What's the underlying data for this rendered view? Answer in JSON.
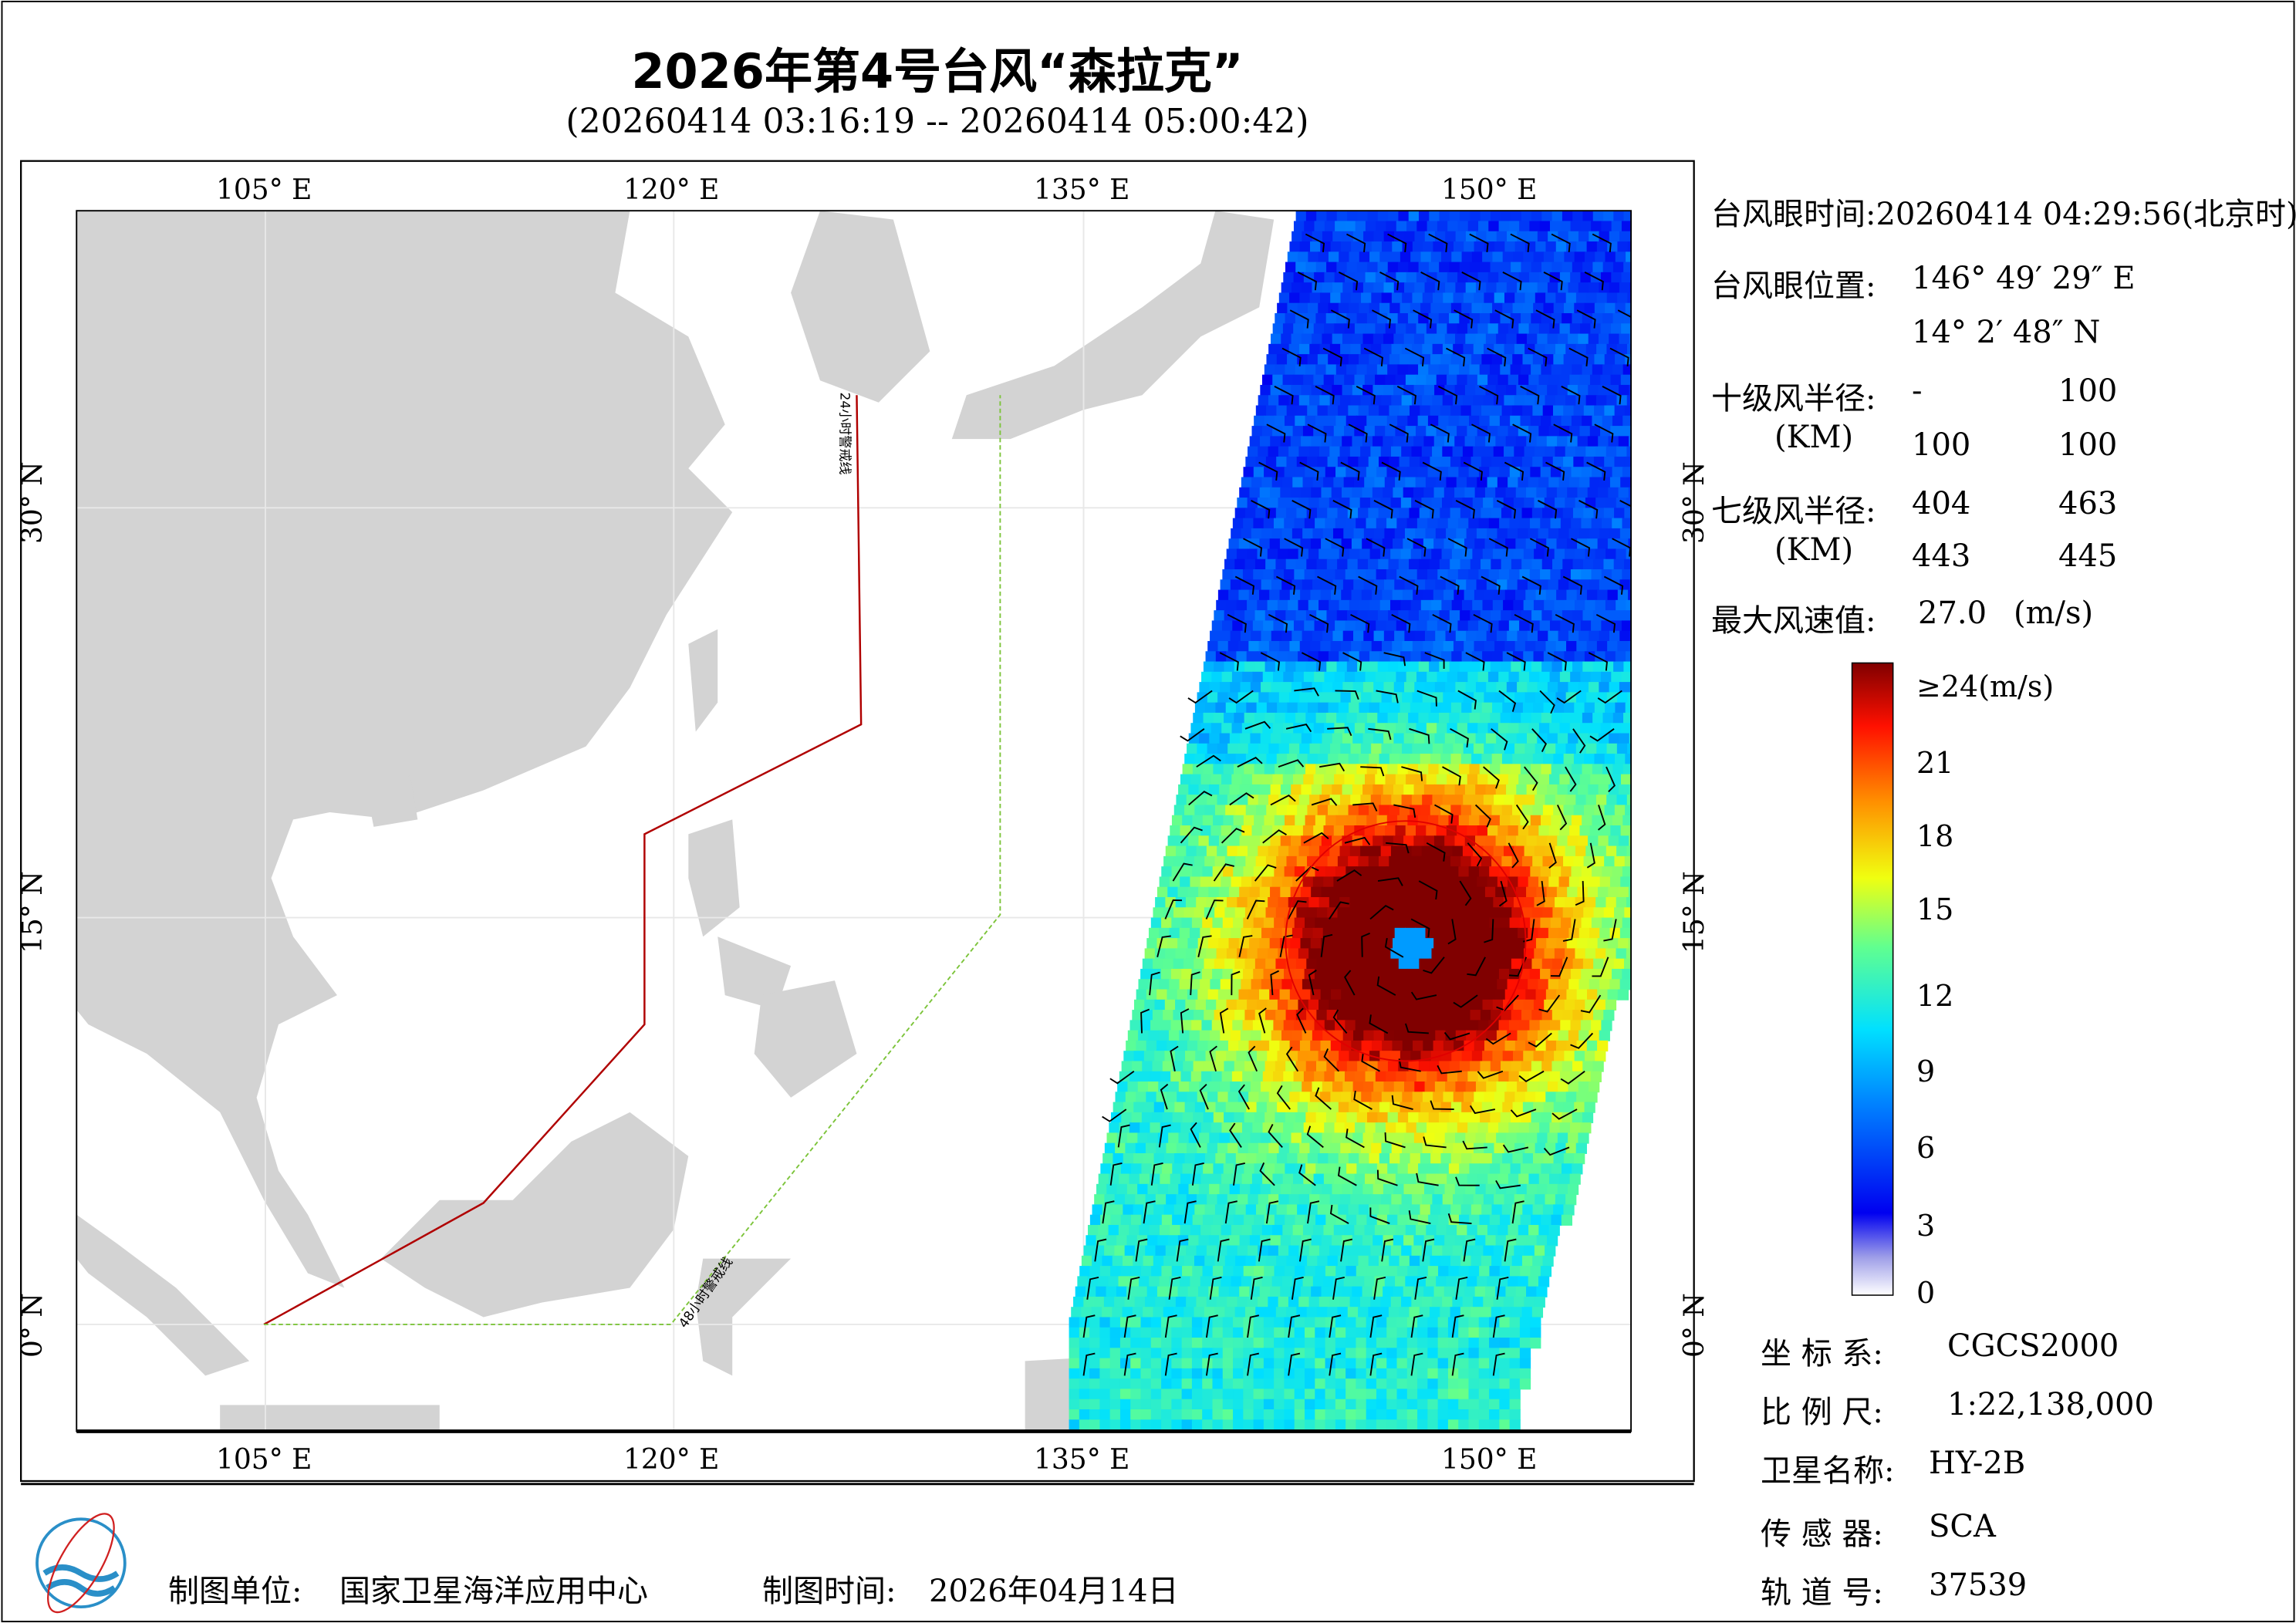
{
  "title": "2026年第4号台风“森拉克”",
  "subtitle": "(20260414 03:16:19 -- 20260414 05:00:42)",
  "map": {
    "lon_ticks": [
      "105° E",
      "120° E",
      "135° E",
      "150° E"
    ],
    "lat_ticks": [
      "30° N",
      "15° N",
      "0° N"
    ],
    "warning_24h_label": "24小时警戒线",
    "warning_48h_label": "48小时警戒线",
    "colors": {
      "land": "#d3d3d3",
      "warning_24h": "#b00000",
      "warning_48h": "#7cc43a",
      "wind_radius_circle": "#e00000"
    },
    "typhoon_center": {
      "lon": 146.825,
      "lat": 14.047
    }
  },
  "info": {
    "eye_time_label": "台风眼时间:",
    "eye_time_value": "20260414 04:29:56(北京时)",
    "eye_pos_label": "台风眼位置:",
    "eye_lon": "146° 49′ 29″ E",
    "eye_lat": "14° 2′ 48″ N",
    "r10_label": "十级风半径:",
    "km_label": "(KM)",
    "r10_values": [
      "-",
      "100",
      "100",
      "100"
    ],
    "r7_label": "七级风半径:",
    "r7_values": [
      "404",
      "463",
      "443",
      "445"
    ],
    "max_wind_label": "最大风速值:",
    "max_wind_value": "27.0",
    "max_wind_unit": "(m/s)"
  },
  "colorbar": {
    "labels": [
      "≥24(m/s)",
      "21",
      "18",
      "15",
      "12",
      "9",
      "6",
      "3",
      "0"
    ],
    "min": 0,
    "max": 24
  },
  "meta": {
    "crs_label": "坐 标 系:",
    "crs_value": "CGCS2000",
    "scale_label": "比 例 尺:",
    "scale_value": "1:22,138,000",
    "sat_label": "卫星名称:",
    "sat_value": "HY-2B",
    "sensor_label": "传 感 器:",
    "sensor_value": "SCA",
    "orbit_label": "轨 道 号:",
    "orbit_value": "37539"
  },
  "footer": {
    "org_label": "制图单位:",
    "org_value": "国家卫星海洋应用中心",
    "date_label": "制图时间:",
    "date_value": "2026年04月14日"
  }
}
